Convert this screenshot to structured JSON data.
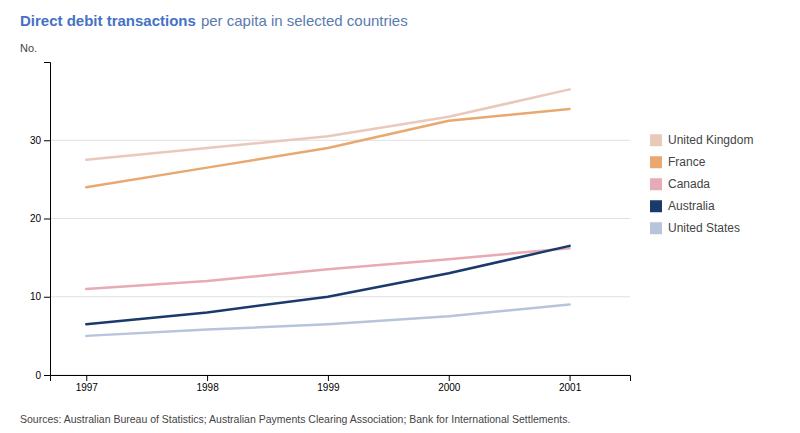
{
  "chart_data": {
    "type": "line",
    "title": "Direct debit transactions",
    "subtitle": "per capita in selected countries",
    "ylabel": "No.",
    "annotations": [
      "Sources: Australian Bureau of Statistics; Australian Payments Clearing Association; Bank for International Settlements."
    ],
    "x": [
      1997,
      1998,
      1999,
      2000,
      2001
    ],
    "series": [
      {
        "name": "United Kingdom",
        "color": "#e8c9bc",
        "values": [
          27.5,
          29.0,
          30.5,
          33.0,
          36.5
        ]
      },
      {
        "name": "France",
        "color": "#e8a870",
        "values": [
          24.0,
          26.5,
          29.0,
          32.5,
          34.0
        ]
      },
      {
        "name": "Canada",
        "color": "#e8aab4",
        "values": [
          11.0,
          12.0,
          13.5,
          14.8,
          16.2
        ]
      },
      {
        "name": "Australia",
        "color": "#1a3a6b",
        "values": [
          6.5,
          8.0,
          10.0,
          13.0,
          16.5
        ]
      },
      {
        "name": "United States",
        "color": "#b8c4dc",
        "values": [
          5.0,
          5.8,
          6.5,
          7.5,
          9.0
        ]
      }
    ],
    "xlim": [
      1996.7,
      2001.5
    ],
    "xticks": [
      1997,
      1998,
      1999,
      2000,
      2001
    ],
    "ylim": [
      0,
      40
    ],
    "yticks": [
      0,
      10,
      20,
      30
    ],
    "grid": true,
    "legend": "right"
  }
}
